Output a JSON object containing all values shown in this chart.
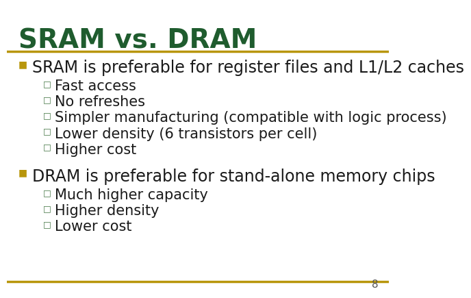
{
  "title": "SRAM vs. DRAM",
  "title_color": "#1f5c2e",
  "background_color": "#ffffff",
  "separator_color": "#b8960c",
  "page_number": "8",
  "bullet_color": "#b8960c",
  "sub_bullet_color": "#4a7a4a",
  "text_color": "#1a1a1a",
  "bullet_font_size": 17,
  "sub_bullet_font_size": 15,
  "title_font_size": 28,
  "sections": [
    {
      "bullet": "SRAM is preferable for register files and L1/L2 caches",
      "sub_bullets": [
        "Fast access",
        "No refreshes",
        "Simpler manufacturing (compatible with logic process)",
        "Lower density (6 transistors per cell)",
        "Higher cost"
      ]
    },
    {
      "bullet": "DRAM is preferable for stand-alone memory chips",
      "sub_bullets": [
        "Much higher capacity",
        "Higher density",
        "Lower cost"
      ]
    }
  ]
}
